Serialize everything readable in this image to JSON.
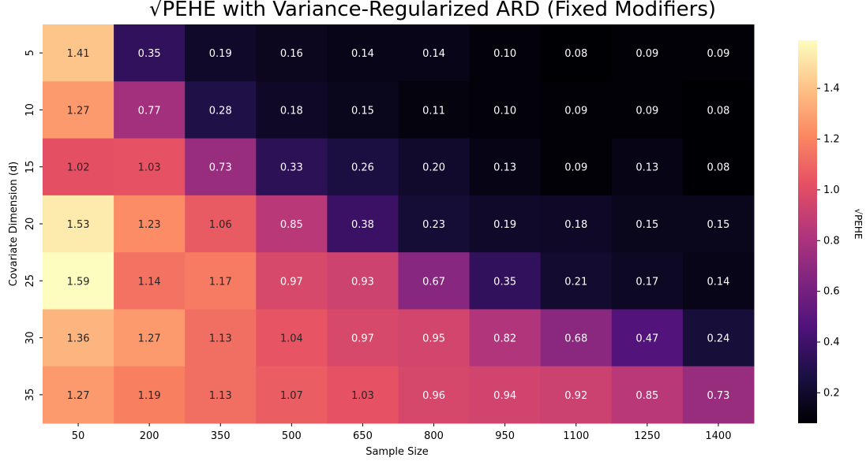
{
  "chart_data": {
    "type": "heatmap",
    "title": "√PEHE with Variance-Regularized ARD (Fixed Modifiers)",
    "xlabel": "Sample Size",
    "ylabel": "Covariate Dimension (d)",
    "x_categories": [
      "50",
      "200",
      "350",
      "500",
      "650",
      "800",
      "950",
      "1100",
      "1250",
      "1400"
    ],
    "y_categories": [
      "5",
      "10",
      "15",
      "20",
      "25",
      "30",
      "35"
    ],
    "values": [
      [
        1.41,
        0.35,
        0.19,
        0.16,
        0.14,
        0.14,
        0.1,
        0.08,
        0.09,
        0.09
      ],
      [
        1.27,
        0.77,
        0.28,
        0.18,
        0.15,
        0.11,
        0.1,
        0.09,
        0.09,
        0.08
      ],
      [
        1.02,
        1.03,
        0.73,
        0.33,
        0.26,
        0.2,
        0.13,
        0.09,
        0.13,
        0.08
      ],
      [
        1.53,
        1.23,
        1.06,
        0.85,
        0.38,
        0.23,
        0.19,
        0.18,
        0.15,
        0.15
      ],
      [
        1.59,
        1.14,
        1.17,
        0.97,
        0.93,
        0.67,
        0.35,
        0.21,
        0.17,
        0.14
      ],
      [
        1.36,
        1.27,
        1.13,
        1.04,
        0.97,
        0.95,
        0.82,
        0.68,
        0.47,
        0.24
      ],
      [
        1.27,
        1.19,
        1.13,
        1.07,
        1.03,
        0.96,
        0.94,
        0.92,
        0.85,
        0.73
      ]
    ],
    "colormap": "magma",
    "colorbar": {
      "label": "√PEHE",
      "range": [
        0.08,
        1.59
      ],
      "ticks": [
        "0.2",
        "0.4",
        "0.6",
        "0.8",
        "1.0",
        "1.2",
        "1.4"
      ]
    },
    "grid": false,
    "legend": "colorbar-right"
  }
}
